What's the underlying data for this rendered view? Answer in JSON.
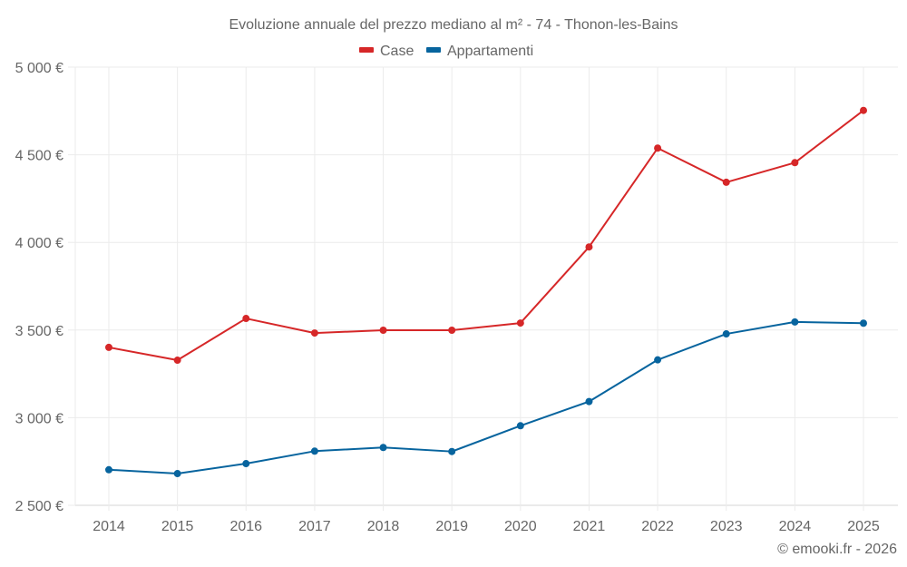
{
  "chart_data": {
    "type": "line",
    "title": "Evoluzione annuale del prezzo mediano al m² - 74 - Thonon-les-Bains",
    "xlabel": "",
    "ylabel": "",
    "x": [
      "2014",
      "2015",
      "2016",
      "2017",
      "2018",
      "2019",
      "2020",
      "2021",
      "2022",
      "2023",
      "2024",
      "2025"
    ],
    "ylim": [
      2500,
      5000
    ],
    "yticks": [
      2500,
      3000,
      3500,
      4000,
      4500,
      5000
    ],
    "ytick_labels": [
      "2 500 €",
      "3 000 €",
      "3 500 €",
      "4 000 €",
      "4 500 €",
      "5 000 €"
    ],
    "grid": true,
    "legend_position": "top-center",
    "series": [
      {
        "name": "Case",
        "color": "#d62728",
        "values": [
          3401,
          3328,
          3566,
          3483,
          3499,
          3499,
          3540,
          3974,
          4538,
          4343,
          4455,
          4753
        ]
      },
      {
        "name": "Appartamenti",
        "color": "#07649e",
        "values": [
          2703,
          2681,
          2738,
          2809,
          2830,
          2807,
          2954,
          3092,
          3330,
          3478,
          3546,
          3539
        ]
      }
    ],
    "credit": "© emooki.fr - 2026"
  }
}
